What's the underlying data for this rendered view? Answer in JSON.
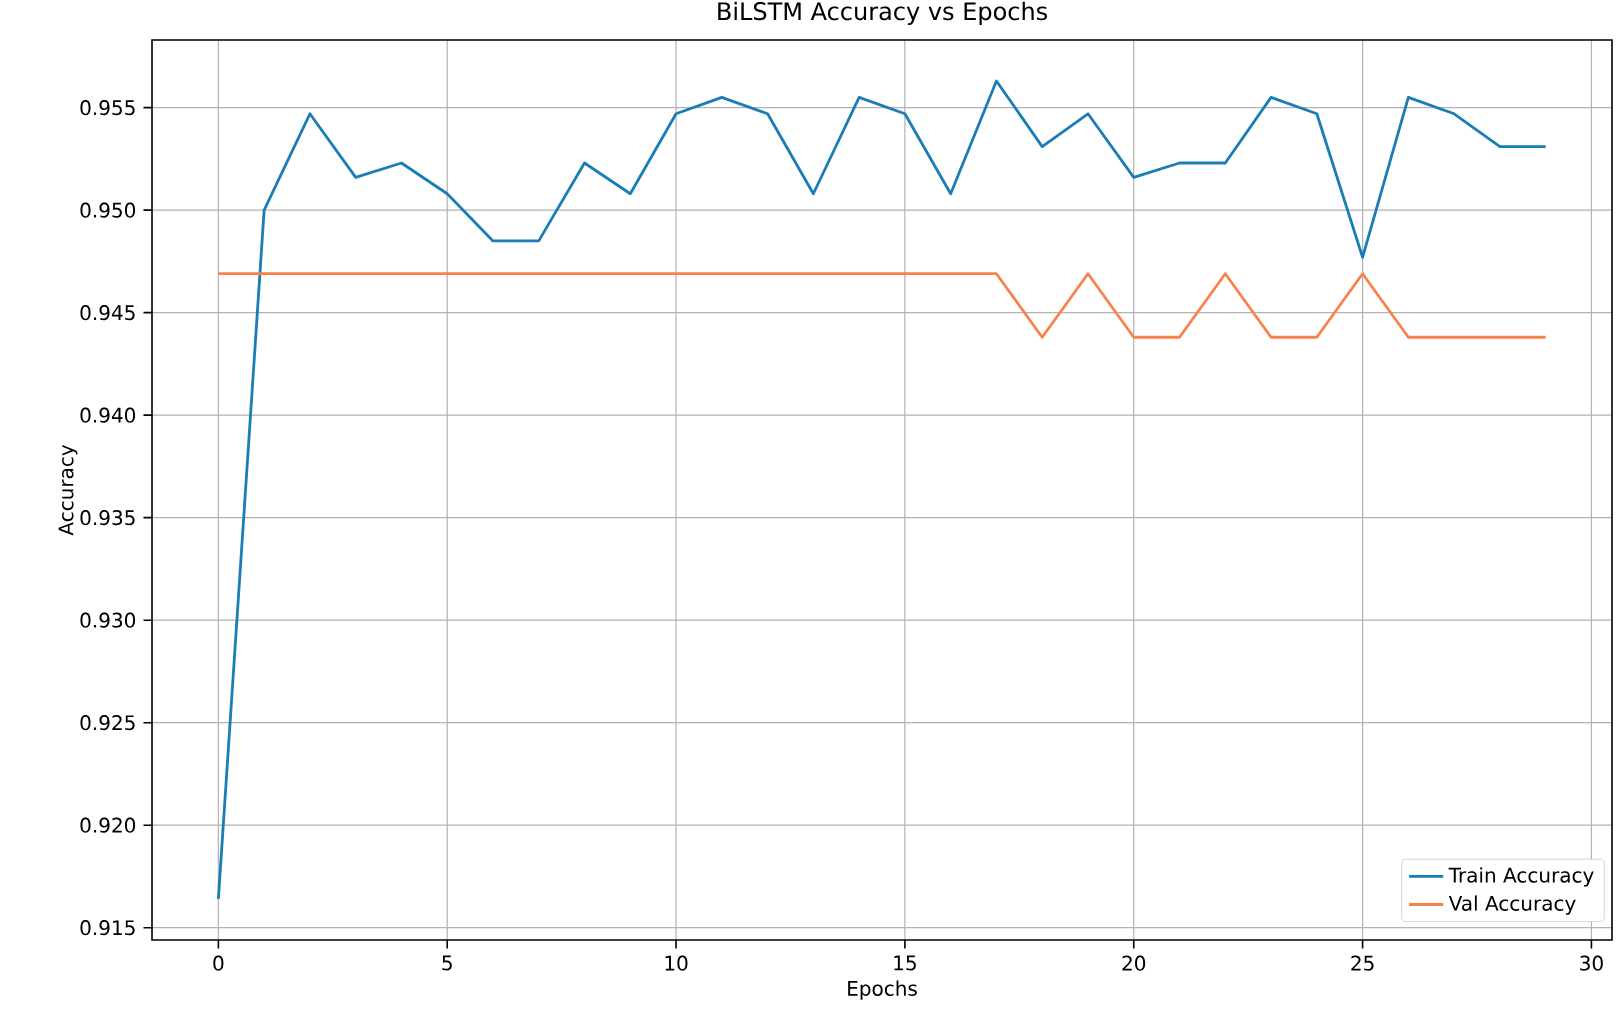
{
  "chart_data": {
    "type": "line",
    "title": "BiLSTM Accuracy vs Epochs",
    "xlabel": "Epochs",
    "ylabel": "Accuracy",
    "x": [
      0,
      1,
      2,
      3,
      4,
      5,
      6,
      7,
      8,
      9,
      10,
      11,
      12,
      13,
      14,
      15,
      16,
      17,
      18,
      19,
      20,
      21,
      22,
      23,
      24,
      25,
      26,
      27,
      28,
      29
    ],
    "series": [
      {
        "name": "Train Accuracy",
        "color": "#1a7db5",
        "values": [
          0.9164,
          0.95,
          0.9547,
          0.9516,
          0.9523,
          0.9508,
          0.9485,
          0.9485,
          0.9523,
          0.9508,
          0.9547,
          0.9555,
          0.9547,
          0.9508,
          0.9555,
          0.9547,
          0.9508,
          0.9563,
          0.9531,
          0.9547,
          0.9516,
          0.9523,
          0.9523,
          0.9555,
          0.9547,
          0.9477,
          0.9555,
          0.9547,
          0.9531,
          0.9531
        ]
      },
      {
        "name": "Val Accuracy",
        "color": "#f7834a",
        "values": [
          0.9469,
          0.9469,
          0.9469,
          0.9469,
          0.9469,
          0.9469,
          0.9469,
          0.9469,
          0.9469,
          0.9469,
          0.9469,
          0.9469,
          0.9469,
          0.9469,
          0.9469,
          0.9469,
          0.9469,
          0.9469,
          0.9438,
          0.9469,
          0.9438,
          0.9438,
          0.9469,
          0.9438,
          0.9438,
          0.9469,
          0.9438,
          0.9438,
          0.9438,
          0.9438
        ]
      }
    ],
    "xlim": [
      -1.45,
      30.45
    ],
    "ylim": [
      0.9144,
      0.9583
    ],
    "xticks": [
      0,
      5,
      10,
      15,
      20,
      25,
      30
    ],
    "yticks": [
      0.915,
      {
        "value": 0.92,
        "label": "0.920"
      },
      0.925,
      {
        "value": 0.93,
        "label": "0.930"
      },
      0.935,
      {
        "value": 0.94,
        "label": "0.940"
      },
      0.945,
      {
        "value": 0.95,
        "label": "0.950"
      },
      0.955
    ],
    "grid": true,
    "legend": "bottom right",
    "marker": "none",
    "line_style": "solid"
  }
}
